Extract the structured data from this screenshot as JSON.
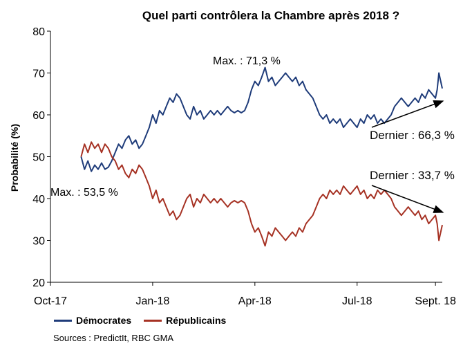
{
  "chart_data": {
    "type": "line",
    "title": "Quel parti contrôlera la Chambre après 2018 ?",
    "ylabel": "Probabilité (%)",
    "xlabel": "",
    "ylim": [
      20,
      80
    ],
    "yticks": [
      20,
      30,
      40,
      50,
      60,
      70,
      80
    ],
    "xlim": [
      0,
      11.5
    ],
    "x_ticks": [
      {
        "label": "Oct-17",
        "x": 0
      },
      {
        "label": "Jan-18",
        "x": 3
      },
      {
        "label": "Apr-18",
        "x": 6
      },
      {
        "label": "Jul-18",
        "x": 9
      },
      {
        "label": "Sept. 18",
        "x": 11.3
      }
    ],
    "series": [
      {
        "name": "Démocrates",
        "color": "#1f3c7a",
        "points": [
          [
            0.9,
            50
          ],
          [
            1.0,
            47
          ],
          [
            1.1,
            49
          ],
          [
            1.2,
            46.5
          ],
          [
            1.3,
            48
          ],
          [
            1.4,
            47
          ],
          [
            1.5,
            48.5
          ],
          [
            1.6,
            47
          ],
          [
            1.7,
            47.5
          ],
          [
            1.8,
            49
          ],
          [
            1.9,
            51
          ],
          [
            2.0,
            53
          ],
          [
            2.1,
            52
          ],
          [
            2.2,
            54
          ],
          [
            2.3,
            55
          ],
          [
            2.4,
            53
          ],
          [
            2.5,
            54
          ],
          [
            2.6,
            52
          ],
          [
            2.7,
            53
          ],
          [
            2.8,
            55
          ],
          [
            2.9,
            57
          ],
          [
            3.0,
            60
          ],
          [
            3.1,
            58
          ],
          [
            3.2,
            61
          ],
          [
            3.3,
            60
          ],
          [
            3.4,
            62
          ],
          [
            3.5,
            64
          ],
          [
            3.6,
            63
          ],
          [
            3.7,
            65
          ],
          [
            3.8,
            64
          ],
          [
            3.9,
            62
          ],
          [
            4.0,
            60
          ],
          [
            4.1,
            59
          ],
          [
            4.2,
            62
          ],
          [
            4.3,
            60
          ],
          [
            4.4,
            61
          ],
          [
            4.5,
            59
          ],
          [
            4.6,
            60
          ],
          [
            4.7,
            61
          ],
          [
            4.8,
            60
          ],
          [
            4.9,
            61
          ],
          [
            5.0,
            60
          ],
          [
            5.1,
            61
          ],
          [
            5.2,
            62
          ],
          [
            5.3,
            61
          ],
          [
            5.4,
            60.5
          ],
          [
            5.5,
            61
          ],
          [
            5.6,
            60.5
          ],
          [
            5.7,
            61
          ],
          [
            5.8,
            63
          ],
          [
            5.9,
            66
          ],
          [
            6.0,
            68
          ],
          [
            6.1,
            67
          ],
          [
            6.2,
            69
          ],
          [
            6.3,
            71.3
          ],
          [
            6.4,
            68
          ],
          [
            6.5,
            69
          ],
          [
            6.6,
            67
          ],
          [
            6.7,
            68
          ],
          [
            6.8,
            69
          ],
          [
            6.9,
            70
          ],
          [
            7.0,
            69
          ],
          [
            7.1,
            68
          ],
          [
            7.2,
            69
          ],
          [
            7.3,
            67
          ],
          [
            7.4,
            68
          ],
          [
            7.5,
            66
          ],
          [
            7.6,
            65
          ],
          [
            7.7,
            64
          ],
          [
            7.8,
            62
          ],
          [
            7.9,
            60
          ],
          [
            8.0,
            59
          ],
          [
            8.1,
            60
          ],
          [
            8.2,
            58
          ],
          [
            8.3,
            59
          ],
          [
            8.4,
            58
          ],
          [
            8.5,
            59
          ],
          [
            8.6,
            57
          ],
          [
            8.7,
            58
          ],
          [
            8.8,
            59
          ],
          [
            8.9,
            58
          ],
          [
            9.0,
            57
          ],
          [
            9.1,
            59
          ],
          [
            9.2,
            58
          ],
          [
            9.3,
            60
          ],
          [
            9.4,
            59
          ],
          [
            9.5,
            60
          ],
          [
            9.6,
            58
          ],
          [
            9.7,
            59
          ],
          [
            9.8,
            58
          ],
          [
            9.9,
            59
          ],
          [
            10.0,
            60
          ],
          [
            10.1,
            62
          ],
          [
            10.2,
            63
          ],
          [
            10.3,
            64
          ],
          [
            10.4,
            63
          ],
          [
            10.5,
            62
          ],
          [
            10.6,
            63
          ],
          [
            10.7,
            64
          ],
          [
            10.8,
            63
          ],
          [
            10.9,
            65
          ],
          [
            11.0,
            64
          ],
          [
            11.1,
            66
          ],
          [
            11.2,
            65
          ],
          [
            11.3,
            64
          ],
          [
            11.35,
            66
          ],
          [
            11.4,
            70
          ],
          [
            11.5,
            66.3
          ]
        ]
      },
      {
        "name": "Républicains",
        "color": "#a63224",
        "points": [
          [
            0.9,
            50
          ],
          [
            1.0,
            53
          ],
          [
            1.1,
            51
          ],
          [
            1.2,
            53.5
          ],
          [
            1.3,
            52
          ],
          [
            1.4,
            53
          ],
          [
            1.5,
            51
          ],
          [
            1.6,
            53
          ],
          [
            1.7,
            52
          ],
          [
            1.8,
            50
          ],
          [
            1.9,
            49
          ],
          [
            2.0,
            47
          ],
          [
            2.1,
            48
          ],
          [
            2.2,
            46
          ],
          [
            2.3,
            45
          ],
          [
            2.4,
            47
          ],
          [
            2.5,
            46
          ],
          [
            2.6,
            48
          ],
          [
            2.7,
            47
          ],
          [
            2.8,
            45
          ],
          [
            2.9,
            43
          ],
          [
            3.0,
            40
          ],
          [
            3.1,
            42
          ],
          [
            3.2,
            39
          ],
          [
            3.3,
            40
          ],
          [
            3.4,
            38
          ],
          [
            3.5,
            36
          ],
          [
            3.6,
            37
          ],
          [
            3.7,
            35
          ],
          [
            3.8,
            36
          ],
          [
            3.9,
            38
          ],
          [
            4.0,
            40
          ],
          [
            4.1,
            41
          ],
          [
            4.2,
            38
          ],
          [
            4.3,
            40
          ],
          [
            4.4,
            39
          ],
          [
            4.5,
            41
          ],
          [
            4.6,
            40
          ],
          [
            4.7,
            39
          ],
          [
            4.8,
            40
          ],
          [
            4.9,
            39
          ],
          [
            5.0,
            40
          ],
          [
            5.1,
            39
          ],
          [
            5.2,
            38
          ],
          [
            5.3,
            39
          ],
          [
            5.4,
            39.5
          ],
          [
            5.5,
            39
          ],
          [
            5.6,
            39.5
          ],
          [
            5.7,
            39
          ],
          [
            5.8,
            37
          ],
          [
            5.9,
            34
          ],
          [
            6.0,
            32
          ],
          [
            6.1,
            33
          ],
          [
            6.2,
            31
          ],
          [
            6.3,
            28.7
          ],
          [
            6.4,
            32
          ],
          [
            6.5,
            31
          ],
          [
            6.6,
            33
          ],
          [
            6.7,
            32
          ],
          [
            6.8,
            31
          ],
          [
            6.9,
            30
          ],
          [
            7.0,
            31
          ],
          [
            7.1,
            32
          ],
          [
            7.2,
            31
          ],
          [
            7.3,
            33
          ],
          [
            7.4,
            32
          ],
          [
            7.5,
            34
          ],
          [
            7.6,
            35
          ],
          [
            7.7,
            36
          ],
          [
            7.8,
            38
          ],
          [
            7.9,
            40
          ],
          [
            8.0,
            41
          ],
          [
            8.1,
            40
          ],
          [
            8.2,
            42
          ],
          [
            8.3,
            41
          ],
          [
            8.4,
            42
          ],
          [
            8.5,
            41
          ],
          [
            8.6,
            43
          ],
          [
            8.7,
            42
          ],
          [
            8.8,
            41
          ],
          [
            8.9,
            42
          ],
          [
            9.0,
            43
          ],
          [
            9.1,
            41
          ],
          [
            9.2,
            42
          ],
          [
            9.3,
            40
          ],
          [
            9.4,
            41
          ],
          [
            9.5,
            40
          ],
          [
            9.6,
            42
          ],
          [
            9.7,
            41
          ],
          [
            9.8,
            42
          ],
          [
            9.9,
            41
          ],
          [
            10.0,
            40
          ],
          [
            10.1,
            38
          ],
          [
            10.2,
            37
          ],
          [
            10.3,
            36
          ],
          [
            10.4,
            37
          ],
          [
            10.5,
            38
          ],
          [
            10.6,
            37
          ],
          [
            10.7,
            36
          ],
          [
            10.8,
            37
          ],
          [
            10.9,
            35
          ],
          [
            11.0,
            36
          ],
          [
            11.1,
            34
          ],
          [
            11.2,
            35
          ],
          [
            11.3,
            36
          ],
          [
            11.35,
            34
          ],
          [
            11.4,
            30
          ],
          [
            11.5,
            33.7
          ]
        ]
      }
    ],
    "annotations": {
      "max_dem": "Max. : 71,3 %",
      "max_rep": "Max. : 53,5 %",
      "last_dem": "Dernier : 66,3 %",
      "last_rep": "Dernier : 33,7 %"
    },
    "legend": [
      "Démocrates",
      "Républicains"
    ],
    "source": "Sources : PredictIt, RBC GMA"
  }
}
